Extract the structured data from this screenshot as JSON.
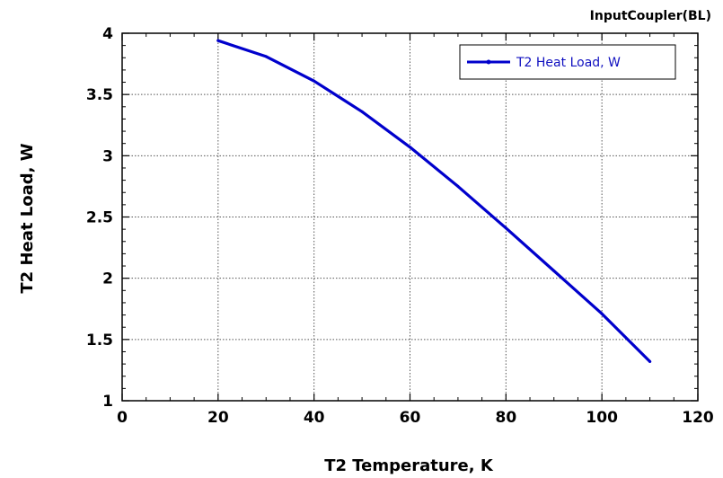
{
  "chart_data": {
    "type": "line",
    "title": "InputCoupler(BL)",
    "xlabel": "T2 Temperature, K",
    "ylabel": "T2 Heat Load, W",
    "xlim": [
      0,
      120
    ],
    "ylim": [
      1,
      4
    ],
    "xticks": [
      0,
      20,
      40,
      60,
      80,
      100,
      120
    ],
    "yticks": [
      1,
      1.5,
      2,
      2.5,
      3,
      3.5,
      4
    ],
    "xtick_labels": [
      "0",
      "20",
      "40",
      "60",
      "80",
      "100",
      "120"
    ],
    "ytick_labels": [
      "1",
      "1.5",
      "2",
      "2.5",
      "3",
      "3.5",
      "4"
    ],
    "grid": true,
    "legend_position": "top-right",
    "series": [
      {
        "name": "T2 Heat Load, W",
        "color": "#0000cc",
        "x": [
          20,
          30,
          40,
          50,
          60,
          70,
          80,
          90,
          100,
          110
        ],
        "y": [
          3.94,
          3.81,
          3.61,
          3.36,
          3.07,
          2.75,
          2.41,
          2.06,
          1.71,
          1.32
        ]
      }
    ]
  }
}
